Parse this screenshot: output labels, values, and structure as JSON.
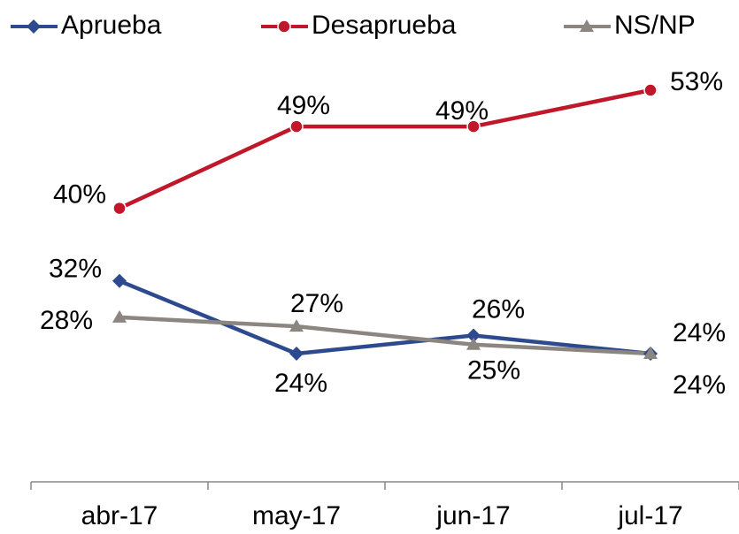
{
  "chart_data": {
    "type": "line",
    "categories": [
      "abr-17",
      "may-17",
      "jun-17",
      "jul-17"
    ],
    "series": [
      {
        "name": "Aprueba",
        "color": "#2e4a8f",
        "marker": "diamond",
        "values": [
          32,
          24,
          26,
          24
        ],
        "value_labels": [
          "32%",
          "24%",
          "26%",
          "24%"
        ]
      },
      {
        "name": "Desaprueba",
        "color": "#c0172a",
        "marker": "circle",
        "values": [
          40,
          49,
          49,
          53
        ],
        "value_labels": [
          "40%",
          "49%",
          "49%",
          "53%"
        ]
      },
      {
        "name": "NS/NP",
        "color": "#8c8681",
        "marker": "triangle",
        "values": [
          28,
          27,
          25,
          24
        ],
        "value_labels": [
          "28%",
          "27%",
          "25%",
          "24%"
        ]
      }
    ],
    "legend": "top"
  }
}
